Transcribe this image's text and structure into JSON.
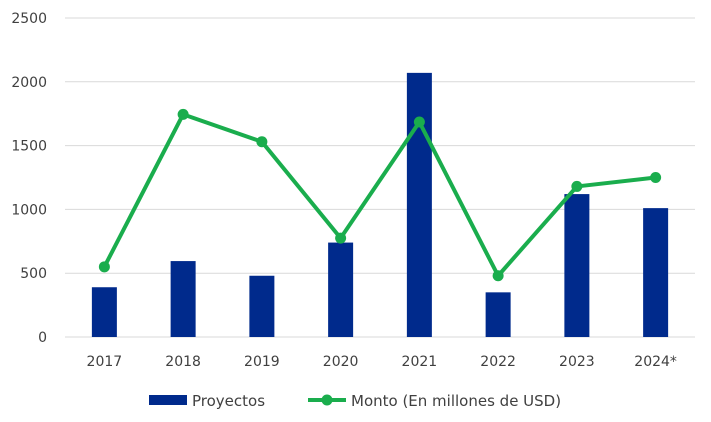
{
  "chart_data": {
    "type": "bar",
    "categories": [
      "2017",
      "2018",
      "2019",
      "2020",
      "2021",
      "2022",
      "2023",
      "2024*"
    ],
    "series": [
      {
        "name": "Proyectos",
        "type": "bar",
        "color": "#002a8c",
        "values": [
          390,
          595,
          480,
          740,
          2070,
          350,
          1120,
          1010
        ]
      },
      {
        "name": "Monto (En millones de USD)",
        "type": "line",
        "color": "#1aad4d",
        "values": [
          550,
          1745,
          1530,
          775,
          1685,
          480,
          1180,
          1250
        ]
      }
    ],
    "ylim": [
      0,
      2500
    ],
    "yticks": [
      "0",
      "500",
      "1000",
      "1500",
      "2000",
      "2500"
    ],
    "grid": true,
    "legend_position": "bottom"
  }
}
